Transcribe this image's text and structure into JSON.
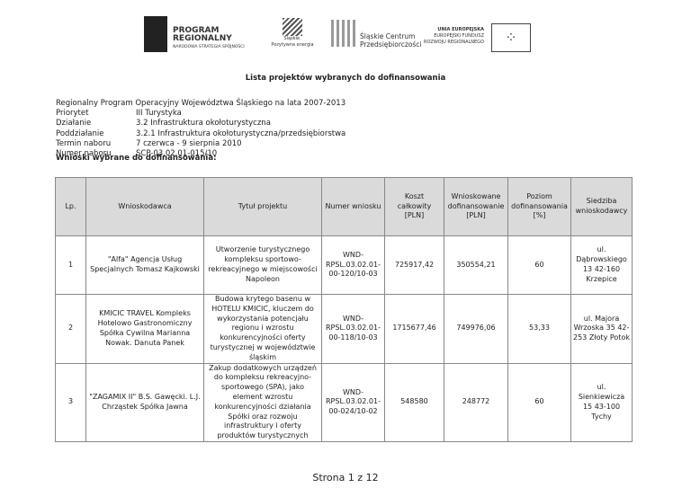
{
  "logos": {
    "program_regionalny": [
      "PROGRAM",
      "REGIONALNY",
      "NARODOWA STRATEGIA SPÓJNOŚCI"
    ],
    "slaskie": [
      "Śląskie.",
      "Pozytywna energia"
    ],
    "scp": [
      "Śląskie Centrum",
      "Przedsiębiorczości"
    ],
    "ue": [
      "UNIA EUROPEJSKA",
      "EUROPEJSKI FUNDUSZ",
      "ROZWOJU REGIONALNEGO"
    ]
  },
  "title": "Lista projektów wybranych do dofinansowania",
  "info": {
    "program": "Regionalny Program Operacyjny Województwa Śląskiego na lata 2007-2013",
    "rows": [
      {
        "label": "Priorytet",
        "value": "III Turystyka"
      },
      {
        "label": "Działanie",
        "value": "3.2 Infrastruktura okołoturystyczna"
      },
      {
        "label": "Poddziałanie",
        "value": "3.2.1 Infrastruktura okołoturystyczna/przedsiębiorstwa"
      },
      {
        "label": "Termin naboru",
        "value": "7 czerwca - 9 sierpnia 2010"
      },
      {
        "label": "Numer naboru",
        "value": "SCP-03.02.01-015/10"
      }
    ]
  },
  "subheading": "Wnioski wybrane do dofinansowania:",
  "table": {
    "headers": [
      "Lp.",
      "Wnioskodawca",
      "Tytuł projektu",
      "Numer wniosku",
      "Koszt całkowity [PLN]",
      "Wnioskowane dofinansowanie [PLN]",
      "Poziom dofinansowania [%]",
      "Siedziba wnioskodawcy"
    ],
    "rows": [
      [
        "1",
        "\"Alfa\" Agencja Usług Specjalnych Tomasz Kajkowski",
        "Utworzenie turystycznego kompleksu sportowo-rekreacyjnego w miejscowości Napoleon",
        "WND-RPSL.03.02.01-00-120/10-03",
        "725917,42",
        "350554,21",
        "60",
        "ul. Dąbrowskiego 13 42-160 Krzepice"
      ],
      [
        "2",
        "KMICIC TRAVEL Kompleks Hotelowo Gastronomiczny Spółka Cywilna Marianna Nowak. Danuta Panek",
        "Budowa krytego basenu w HOTELU KMICIC, kluczem do wykorzystania potencjału regionu i wzrostu konkurencyjności oferty turystycznej w województwie śląskim",
        "WND-RPSL.03.02.01-00-118/10-03",
        "1715677,46",
        "749976,06",
        "53,33",
        "ul. Majora Wrzoska 35 42-253 Złoty Potok"
      ],
      [
        "3",
        "\"ZAGAMIX II\" B.S. Gawęcki. L.J. Chrząstek Spółka Jawna",
        "Zakup dodatkowych urządzeń do kompleksu rekreacyjno-sportowego (SPA), jako element wzrostu konkurencyjności działania Spółki oraz rozwoju infrastruktury i oferty produktów turystycznych",
        "WND-RPSL.03.02.01-00-024/10-02",
        "548580",
        "248772",
        "60",
        "ul. Sienkiewicza 15 43-100 Tychy"
      ]
    ]
  },
  "footer": "Strona 1 z 12"
}
